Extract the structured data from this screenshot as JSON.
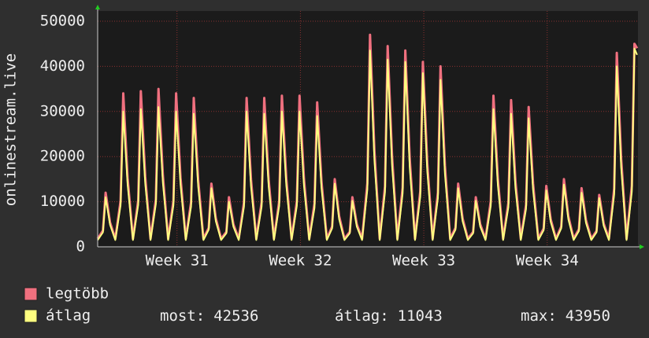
{
  "chart_data": {
    "type": "line",
    "y_label": "onlinestream.live",
    "ylim": [
      0,
      50000
    ],
    "yticks": [
      0,
      10000,
      20000,
      30000,
      40000,
      50000
    ],
    "xlim": [
      0,
      30.65
    ],
    "xticks": [
      {
        "value": 4.5,
        "label": "Week 31"
      },
      {
        "value": 11.5,
        "label": "Week 32"
      },
      {
        "value": 18.5,
        "label": "Week 33"
      },
      {
        "value": 25.5,
        "label": "Week 34"
      }
    ],
    "grid": true,
    "x": [
      0,
      0.3,
      0.45,
      0.7,
      1,
      1.3,
      1.45,
      1.7,
      2,
      2.3,
      2.45,
      2.7,
      3,
      3.3,
      3.45,
      3.7,
      4,
      4.3,
      4.45,
      4.7,
      5,
      5.3,
      5.45,
      5.7,
      6,
      6.3,
      6.45,
      6.7,
      7,
      7.3,
      7.45,
      7.7,
      8,
      8.3,
      8.45,
      8.7,
      9,
      9.3,
      9.45,
      9.7,
      10,
      10.3,
      10.45,
      10.7,
      11,
      11.3,
      11.45,
      11.7,
      12,
      12.3,
      12.45,
      12.7,
      13,
      13.3,
      13.45,
      13.7,
      14,
      14.3,
      14.45,
      14.7,
      15,
      15.3,
      15.45,
      15.7,
      16,
      16.3,
      16.45,
      16.7,
      17,
      17.3,
      17.45,
      17.7,
      18,
      18.3,
      18.45,
      18.7,
      19,
      19.3,
      19.45,
      19.7,
      20,
      20.3,
      20.45,
      20.7,
      21,
      21.3,
      21.45,
      21.7,
      22,
      22.3,
      22.45,
      22.7,
      23,
      23.3,
      23.45,
      23.7,
      24,
      24.3,
      24.45,
      24.7,
      25,
      25.3,
      25.45,
      25.7,
      26,
      26.3,
      26.45,
      26.7,
      27,
      27.3,
      27.45,
      27.7,
      28,
      28.3,
      28.45,
      28.7,
      29,
      29.3,
      29.45,
      29.7,
      30,
      30.3,
      30.45,
      30.6
    ],
    "series": [
      {
        "name": "legtöbb",
        "color": "#f0707f",
        "values": [
          1800,
          3600,
          12000,
          5400,
          1800,
          10200,
          34000,
          15300,
          1800,
          10300,
          34500,
          15500,
          1800,
          10500,
          35000,
          15800,
          1800,
          10200,
          34000,
          15300,
          1800,
          9900,
          33000,
          14900,
          1800,
          4200,
          14000,
          6300,
          1800,
          3300,
          11000,
          5000,
          1800,
          9900,
          33000,
          14900,
          1800,
          9900,
          33000,
          14900,
          1800,
          10100,
          33500,
          15100,
          1800,
          10100,
          33500,
          15100,
          1800,
          9600,
          32000,
          14400,
          1800,
          4500,
          15000,
          6800,
          1800,
          3300,
          11000,
          5000,
          1800,
          14100,
          47000,
          21200,
          1800,
          13400,
          44500,
          20000,
          1800,
          13100,
          43500,
          19600,
          1800,
          12300,
          41000,
          18500,
          1800,
          12000,
          40000,
          18000,
          1800,
          4200,
          14000,
          6300,
          1800,
          3300,
          11000,
          5000,
          1800,
          10100,
          33500,
          15100,
          1800,
          9800,
          32500,
          14600,
          1800,
          9300,
          31000,
          14000,
          1800,
          4100,
          13500,
          6100,
          1800,
          4500,
          15000,
          6800,
          1800,
          3900,
          13000,
          5900,
          1800,
          3500,
          11500,
          5200,
          1800,
          12900,
          43000,
          19400,
          1800,
          13500,
          45000,
          44000
        ]
      },
      {
        "name": "átlag",
        "color": "#ffff80",
        "values": [
          1500,
          3200,
          11000,
          4900,
          1500,
          9200,
          30000,
          13800,
          1500,
          9300,
          30500,
          14000,
          1500,
          9500,
          31000,
          14200,
          1500,
          9200,
          30000,
          13800,
          1500,
          8900,
          29500,
          13400,
          1500,
          3800,
          13000,
          5700,
          1500,
          3000,
          10000,
          4500,
          1500,
          8900,
          30000,
          13400,
          1500,
          8900,
          29500,
          13400,
          1500,
          9100,
          30000,
          13600,
          1500,
          9100,
          30000,
          13600,
          1500,
          8600,
          29000,
          13000,
          1500,
          4100,
          14000,
          6100,
          1500,
          3000,
          10200,
          4500,
          1500,
          12700,
          43500,
          19100,
          1500,
          12100,
          41500,
          18000,
          1500,
          11800,
          41000,
          17600,
          1500,
          11100,
          38500,
          16700,
          1500,
          10800,
          37000,
          16200,
          1500,
          3800,
          13000,
          5700,
          1500,
          3000,
          10200,
          4500,
          1500,
          9100,
          30500,
          13600,
          1500,
          8800,
          29500,
          13100,
          1500,
          8400,
          28500,
          12600,
          1500,
          3700,
          12500,
          5500,
          1500,
          4100,
          13800,
          6100,
          1500,
          3500,
          12000,
          5300,
          1500,
          3200,
          10800,
          4700,
          1500,
          11600,
          40000,
          17500,
          1500,
          12200,
          43950,
          42536
        ]
      }
    ],
    "stats": [
      {
        "label": "most:",
        "value": 42536
      },
      {
        "label": "átlag:",
        "value": 11043
      },
      {
        "label": "max:",
        "value": 43950
      }
    ]
  }
}
